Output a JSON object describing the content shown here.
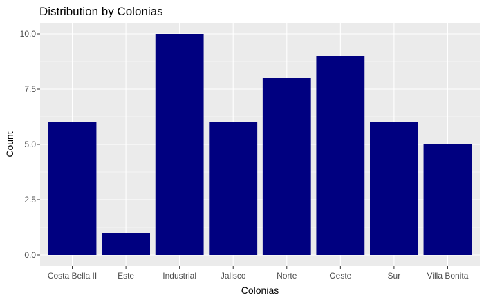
{
  "chart_data": {
    "type": "bar",
    "title": "Distribution by Colonias",
    "xlabel": "Colonias",
    "ylabel": "Count",
    "categories": [
      "Costa Bella II",
      "Este",
      "Industrial",
      "Jalisco",
      "Norte",
      "Oeste",
      "Sur",
      "Villa Bonita"
    ],
    "values": [
      6,
      1,
      10,
      6,
      8,
      9,
      6,
      5
    ],
    "ylim": [
      -0.5,
      10.5
    ],
    "yticks": [
      "0.0",
      "2.5",
      "5.0",
      "7.5",
      "10.0"
    ],
    "ytick_values": [
      0,
      2.5,
      5,
      7.5,
      10
    ],
    "grid": true,
    "colors": {
      "bar": "#000080",
      "panel": "#ebebeb",
      "grid": "#ffffff"
    }
  }
}
